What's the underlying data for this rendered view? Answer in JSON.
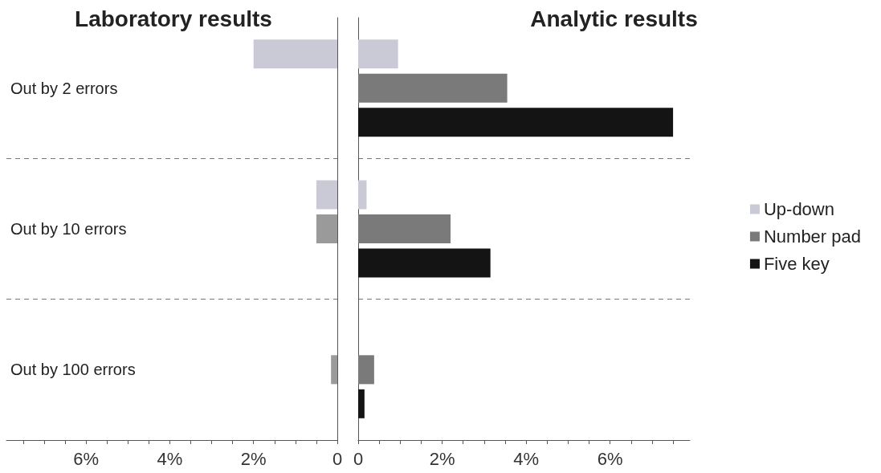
{
  "chart_data": [
    {
      "type": "bar",
      "title": "Laboratory results",
      "orientation": "horizontal",
      "categories": [
        "Out by 2 errors",
        "Out by 10 errors",
        "Out by 100 errors"
      ],
      "series": [
        {
          "color": "#c9cad5",
          "values": [
            2.0,
            0.5,
            null
          ]
        },
        {
          "color": "#9a9a9a",
          "values": [
            null,
            0.5,
            0.15
          ]
        },
        {
          "color": "#141414",
          "values": [
            null,
            null,
            null
          ]
        }
      ],
      "xlim": [
        7.9,
        0
      ],
      "xticks": [
        0,
        {
          "value": 0.5,
          "label": null
        },
        {
          "value": 1,
          "label": null
        },
        {
          "value": 1.5,
          "label": null
        },
        {
          "value": 2,
          "label": "2%"
        },
        {
          "value": 2.5,
          "label": null
        },
        {
          "value": 3,
          "label": null
        },
        {
          "value": 3.5,
          "label": null
        },
        {
          "value": 4,
          "label": "4%"
        },
        {
          "value": 4.5,
          "label": null
        },
        {
          "value": 5,
          "label": null
        },
        {
          "value": 5.5,
          "label": null
        },
        {
          "value": 6,
          "label": "6%"
        },
        {
          "value": 6.5,
          "label": null
        },
        {
          "value": 7,
          "label": null
        },
        {
          "value": 7.5,
          "label": null
        }
      ],
      "grid": "y",
      "legend": false
    },
    {
      "type": "bar",
      "title": "Analytic results",
      "orientation": "horizontal",
      "categories": [
        null,
        null,
        null
      ],
      "series": [
        {
          "name": "Up-down",
          "color": "#c9cad5",
          "values": [
            0.95,
            0.2,
            null
          ]
        },
        {
          "name": "Number pad",
          "color": "#7a7a7a",
          "values": [
            3.55,
            2.2,
            0.38
          ]
        },
        {
          "name": "Five key",
          "color": "#141414",
          "values": [
            7.5,
            3.15,
            0.15
          ]
        }
      ],
      "xlim": [
        0,
        7.9
      ],
      "xticks": [
        0,
        {
          "value": 0.5,
          "label": null
        },
        {
          "value": 1,
          "label": null
        },
        {
          "value": 1.5,
          "label": null
        },
        {
          "value": 2,
          "label": "2%"
        },
        {
          "value": 2.5,
          "label": null
        },
        {
          "value": 3,
          "label": null
        },
        {
          "value": 3.5,
          "label": null
        },
        {
          "value": 4,
          "label": "4%"
        },
        {
          "value": 4.5,
          "label": null
        },
        {
          "value": 5,
          "label": null
        },
        {
          "value": 5.5,
          "label": null
        },
        {
          "value": 6,
          "label": "6%"
        },
        {
          "value": 6.5,
          "label": null
        },
        {
          "value": 7,
          "label": null
        },
        {
          "value": 7.5,
          "label": null
        }
      ],
      "grid": "y",
      "legend": "right",
      "tick_labels": "x"
    }
  ]
}
